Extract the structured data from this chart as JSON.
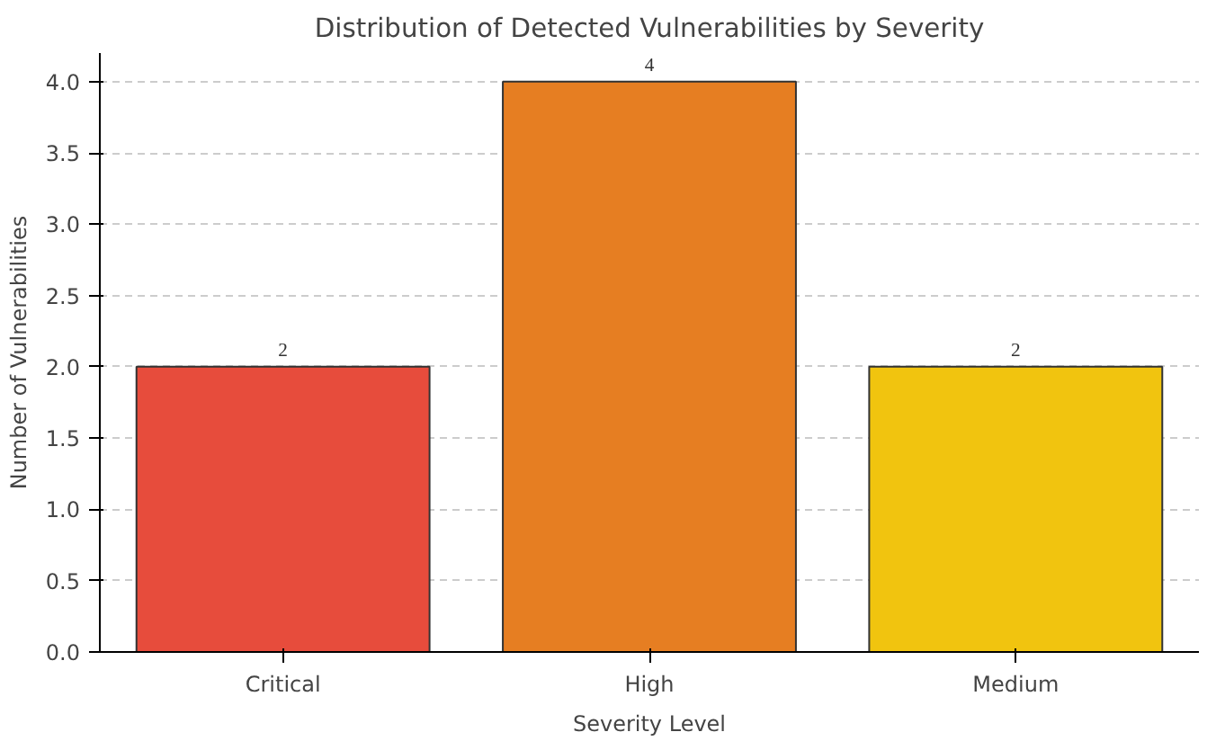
{
  "chart_data": {
    "type": "bar",
    "title": "Distribution of Detected Vulnerabilities by Severity",
    "xlabel": "Severity Level",
    "ylabel": "Number of Vulnerabilities",
    "categories": [
      "Critical",
      "High",
      "Medium"
    ],
    "values": [
      2,
      4,
      2
    ],
    "colors": [
      "#e74c3c",
      "#e67e22",
      "#f1c40f"
    ],
    "data_labels": true,
    "ylim": [
      0,
      4.2
    ],
    "yticks": [
      {
        "value": 0,
        "label": "0.0"
      },
      {
        "value": 0.5,
        "label": "0.5"
      },
      {
        "value": 1,
        "label": "1.0"
      },
      {
        "value": 1.5,
        "label": "1.5"
      },
      {
        "value": 2,
        "label": "2.0"
      },
      {
        "value": 2.5,
        "label": "2.5"
      },
      {
        "value": 3,
        "label": "3.0"
      },
      {
        "value": 3.5,
        "label": "3.5"
      },
      {
        "value": 4,
        "label": "4.0"
      }
    ],
    "grid": "y"
  }
}
